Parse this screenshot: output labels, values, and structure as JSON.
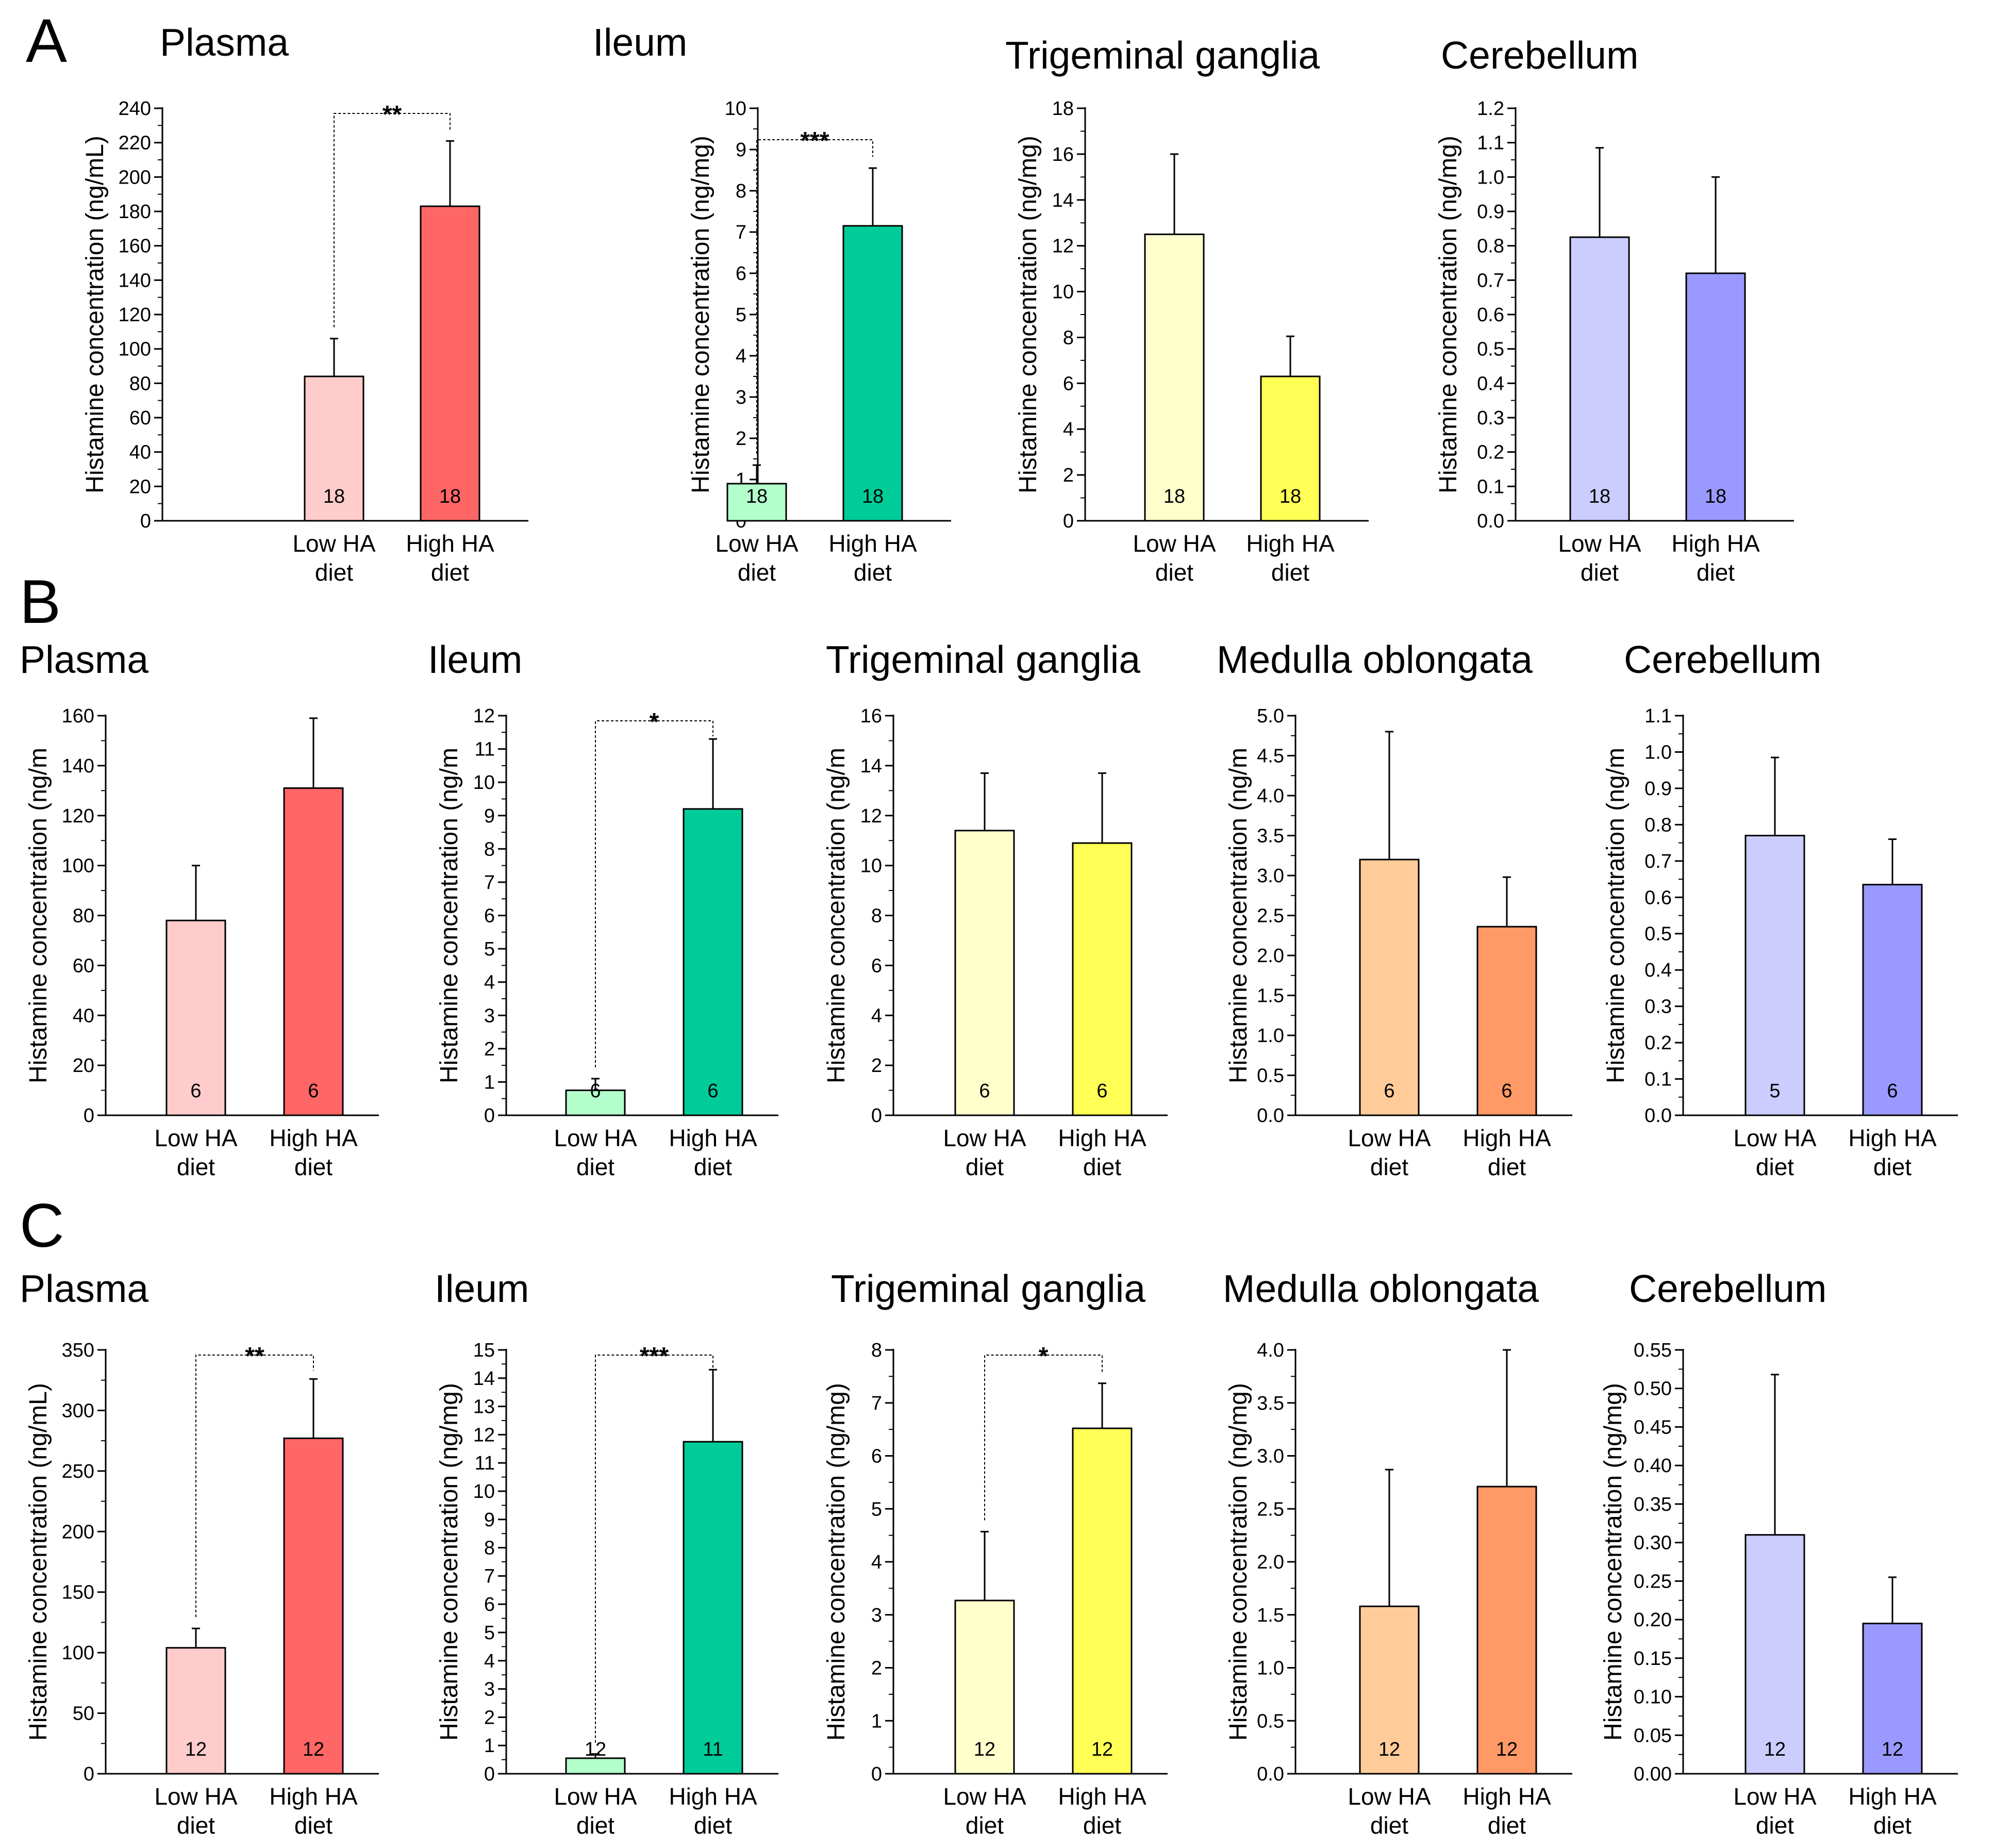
{
  "colors": {
    "plasma": [
      "#ffcccc",
      "#ff6666"
    ],
    "ileum": [
      "#b3ffcc",
      "#00cc99"
    ],
    "trigeminal": [
      "#ffffcc",
      "#ffff55"
    ],
    "medulla": [
      "#ffcc99",
      "#ff9966"
    ],
    "cerebellum": [
      "#ccccff",
      "#9999ff"
    ]
  },
  "panels": [
    {
      "letter": "A"
    },
    {
      "letter": "B"
    },
    {
      "letter": "C"
    }
  ],
  "chart_data": [
    {
      "panel": "A",
      "type": "bar",
      "title": "Plasma",
      "ylabel": "Histamine concentration (ng/mL)",
      "categories": [
        "Low HA\ndiet",
        "High HA\ndiet"
      ],
      "values": [
        84,
        183
      ],
      "errors": [
        22,
        38
      ],
      "n": [
        "18",
        "18"
      ],
      "ylim": [
        0,
        240
      ],
      "major": 20,
      "tick_decimals": 0,
      "sig": "**",
      "colors_key": "plasma"
    },
    {
      "panel": "A",
      "type": "bar",
      "title": "Ileum",
      "ylabel": "Histamine concentration (ng/mg)",
      "categories": [
        "Low HA\ndiet",
        "High HA\ndiet"
      ],
      "values": [
        0.9,
        7.15
      ],
      "errors": [
        0.45,
        1.4
      ],
      "n": [
        "18",
        "18"
      ],
      "ylim": [
        0,
        10
      ],
      "major": 1,
      "tick_decimals": 0,
      "sig": "***",
      "colors_key": "ileum"
    },
    {
      "panel": "A",
      "type": "bar",
      "title": "Trigeminal ganglia",
      "ylabel": "Histamine concentration (ng/mg)",
      "categories": [
        "Low HA\ndiet",
        "High HA\ndiet"
      ],
      "values": [
        12.5,
        6.3
      ],
      "errors": [
        3.5,
        1.75
      ],
      "n": [
        "18",
        "18"
      ],
      "ylim": [
        0,
        18
      ],
      "major": 2,
      "tick_decimals": 0,
      "sig": "",
      "colors_key": "trigeminal"
    },
    {
      "panel": "A",
      "type": "bar",
      "title": "Cerebellum",
      "ylabel": "Histamine concentration (ng/mg)",
      "categories": [
        "Low HA\ndiet",
        "High HA\ndiet"
      ],
      "values": [
        0.825,
        0.72
      ],
      "errors": [
        0.26,
        0.28
      ],
      "n": [
        "18",
        "18"
      ],
      "ylim": [
        0,
        1.2
      ],
      "major": 0.1,
      "tick_decimals": 1,
      "sig": "",
      "colors_key": "cerebellum"
    },
    {
      "panel": "B",
      "type": "bar",
      "title": "Plasma",
      "ylabel": "Histamine concentration (ng/m",
      "categories": [
        "Low HA\ndiet",
        "High HA\ndiet"
      ],
      "values": [
        78,
        131
      ],
      "errors": [
        22,
        28
      ],
      "n": [
        "6",
        "6"
      ],
      "ylim": [
        0,
        160
      ],
      "major": 20,
      "tick_decimals": 0,
      "sig": "",
      "colors_key": "plasma"
    },
    {
      "panel": "B",
      "type": "bar",
      "title": "Ileum",
      "ylabel": "Histamine concentration (ng/m",
      "categories": [
        "Low HA\ndiet",
        "High HA\ndiet"
      ],
      "values": [
        0.75,
        9.2
      ],
      "errors": [
        0.35,
        2.1
      ],
      "n": [
        "6",
        "6"
      ],
      "ylim": [
        0,
        12
      ],
      "major": 1,
      "tick_decimals": 0,
      "sig": "*",
      "colors_key": "ileum"
    },
    {
      "panel": "B",
      "type": "bar",
      "title": "Trigeminal ganglia",
      "ylabel": "Histamine concentration (ng/m",
      "categories": [
        "Low HA\ndiet",
        "High HA\ndiet"
      ],
      "values": [
        11.4,
        10.9
      ],
      "errors": [
        2.3,
        2.8
      ],
      "n": [
        "6",
        "6"
      ],
      "ylim": [
        0,
        16
      ],
      "major": 2,
      "tick_decimals": 0,
      "sig": "",
      "colors_key": "trigeminal"
    },
    {
      "panel": "B",
      "type": "bar",
      "title": "Medulla oblongata",
      "ylabel": "Histamine concentration (ng/m",
      "categories": [
        "Low HA\ndiet",
        "High HA\ndiet"
      ],
      "values": [
        3.2,
        2.36
      ],
      "errors": [
        1.6,
        0.62
      ],
      "n": [
        "6",
        "6"
      ],
      "ylim": [
        0,
        5
      ],
      "major": 0.5,
      "tick_decimals": 1,
      "sig": "",
      "colors_key": "medulla"
    },
    {
      "panel": "B",
      "type": "bar",
      "title": "Cerebellum",
      "ylabel": "Histamine concentration (ng/m",
      "categories": [
        "Low HA\ndiet",
        "High HA\ndiet"
      ],
      "values": [
        0.77,
        0.635
      ],
      "errors": [
        0.215,
        0.125
      ],
      "n": [
        "5",
        "6"
      ],
      "ylim": [
        0,
        1.1
      ],
      "major": 0.1,
      "tick_decimals": 1,
      "sig": "",
      "colors_key": "cerebellum"
    },
    {
      "panel": "C",
      "type": "bar",
      "title": "Plasma",
      "ylabel": "Histamine concentration (ng/mL)",
      "categories": [
        "Low HA\ndiet",
        "High HA\ndiet"
      ],
      "values": [
        104,
        277
      ],
      "errors": [
        16,
        49
      ],
      "n": [
        "12",
        "12"
      ],
      "ylim": [
        0,
        350
      ],
      "major": 50,
      "tick_decimals": 0,
      "sig": "**",
      "colors_key": "plasma"
    },
    {
      "panel": "C",
      "type": "bar",
      "title": "Ileum",
      "ylabel": "Histamine concentration (ng/mg)",
      "categories": [
        "Low HA\ndiet",
        "High HA\ndiet"
      ],
      "values": [
        0.55,
        11.75
      ],
      "errors": [
        0.15,
        2.55
      ],
      "n": [
        "12",
        "11"
      ],
      "ylim": [
        0,
        15
      ],
      "major": 1,
      "tick_decimals": 0,
      "sig": "***",
      "colors_key": "ileum"
    },
    {
      "panel": "C",
      "type": "bar",
      "title": "Trigeminal ganglia",
      "ylabel": "Histamine concentration (ng/mg)",
      "categories": [
        "Low HA\ndiet",
        "High HA\ndiet"
      ],
      "values": [
        3.27,
        6.52
      ],
      "errors": [
        1.3,
        0.85
      ],
      "n": [
        "12",
        "12"
      ],
      "ylim": [
        0,
        8
      ],
      "major": 1,
      "tick_decimals": 0,
      "sig": "*",
      "colors_key": "trigeminal"
    },
    {
      "panel": "C",
      "type": "bar",
      "title": "Medulla oblongata",
      "ylabel": "Histamine concentration (ng/mg)",
      "categories": [
        "Low HA\ndiet",
        "High HA\ndiet"
      ],
      "values": [
        1.58,
        2.71
      ],
      "errors": [
        1.29,
        1.29
      ],
      "n": [
        "12",
        "12"
      ],
      "ylim": [
        0,
        4
      ],
      "major": 0.5,
      "tick_decimals": 1,
      "sig": "",
      "colors_key": "medulla"
    },
    {
      "panel": "C",
      "type": "bar",
      "title": "Cerebellum",
      "ylabel": "Histamine concentration (ng/mg)",
      "categories": [
        "Low HA\ndiet",
        "High HA\ndiet"
      ],
      "values": [
        0.31,
        0.195
      ],
      "errors": [
        0.208,
        0.06
      ],
      "n": [
        "12",
        "12"
      ],
      "ylim": [
        0,
        0.55
      ],
      "major": 0.05,
      "tick_decimals": 2,
      "sig": "",
      "colors_key": "cerebellum"
    }
  ]
}
